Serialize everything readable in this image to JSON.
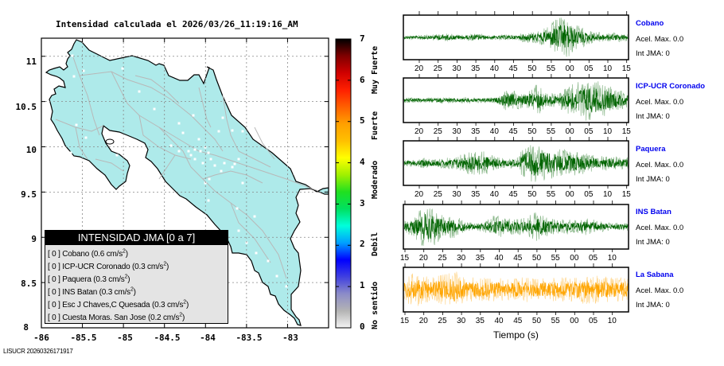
{
  "title": "Intensidad calculada el 2026/03/26_11:19:16_AM",
  "footer": "LISUCR 20260326171917",
  "map": {
    "lat_ticks": [
      "11",
      "10.5",
      "10",
      "9.5",
      "9",
      "8.5",
      "8"
    ],
    "lon_ticks": [
      "-86",
      "-85.5",
      "-85",
      "-84.5",
      "-84",
      "-83.5",
      "-83"
    ],
    "lat_range": [
      8,
      11.2
    ],
    "lon_range": [
      -86,
      -82.5
    ],
    "land_color": "#aeeaea",
    "road_color": "#b8b8b8"
  },
  "legend": {
    "header": "INTENSIDAD JMA [0 a 7]",
    "items": [
      {
        "intensity": "[ 0 ]",
        "station": "Cobano (0.6 cm/s",
        "sup": "2",
        "close": ")"
      },
      {
        "intensity": "[ 0 ]",
        "station": "ICP-UCR Coronado (0.3 cm/s",
        "sup": "2",
        "close": ")"
      },
      {
        "intensity": "[ 0 ]",
        "station": "Paquera (0.3 cm/s",
        "sup": "2",
        "close": ")"
      },
      {
        "intensity": "[ 0 ]",
        "station": "INS Batan (0.3 cm/s",
        "sup": "2",
        "close": ")"
      },
      {
        "intensity": "[ 0 ]",
        "station": "Esc J Chaves,C Quesada (0.3 cm/s",
        "sup": "2",
        "close": ")"
      },
      {
        "intensity": "[ 0 ]",
        "station": "Cuesta Moras. San Jose (0.2 cm/s",
        "sup": "2",
        "close": ")"
      }
    ]
  },
  "colorbar": {
    "ticks": [
      "0",
      "1",
      "2",
      "3",
      "4",
      "5",
      "6",
      "7"
    ],
    "categories": [
      "No sentido",
      "Debil",
      "Moderado",
      "Fuerte",
      "Muy Fuerte"
    ],
    "stops": [
      "#f4f4f4",
      "#b4b4b4",
      "#8c8cc8",
      "#4040e0",
      "#0000ff",
      "#00a0ff",
      "#00ffdc",
      "#00e060",
      "#20e020",
      "#a0f000",
      "#ffff00",
      "#ffc000",
      "#ffa000",
      "#ff6000",
      "#ff2000",
      "#d00000",
      "#800000",
      "#000000"
    ]
  },
  "chart_data": {
    "type": "line",
    "title": "Intensidad calculada el 2026/03/26_11:19:16_AM",
    "xlabel": "Tiempo (s)",
    "series": [
      {
        "name": "Cobano",
        "acel": "Acel. Max. 0.0",
        "int": "Int JMA: 0",
        "color": "#006400",
        "ticks": [
          "20",
          "25",
          "30",
          "35",
          "40",
          "45",
          "50",
          "55",
          "00",
          "05",
          "10",
          "15"
        ],
        "tick_offset": 1,
        "envelope": [
          0.1,
          0.1,
          0.12,
          0.15,
          0.2,
          0.15,
          0.12,
          0.18,
          0.12,
          0.1,
          0.15,
          0.12,
          0.25,
          0.3,
          0.45,
          0.9,
          1.0,
          0.6,
          0.35,
          0.25,
          0.2,
          0.22,
          0.18
        ]
      },
      {
        "name": "ICP-UCR Coronado",
        "acel": "Acel. Max. 0.0",
        "int": "Int JMA: 0",
        "color": "#006400",
        "ticks": [
          "20",
          "25",
          "30",
          "35",
          "40",
          "45",
          "50",
          "55",
          "00",
          "05",
          "10",
          "15"
        ],
        "tick_offset": 1,
        "envelope": [
          0.12,
          0.12,
          0.1,
          0.12,
          0.15,
          0.12,
          0.14,
          0.12,
          0.12,
          0.15,
          0.5,
          0.45,
          0.35,
          0.75,
          0.4,
          0.3,
          0.6,
          0.85,
          1.0,
          0.9,
          0.7,
          0.5,
          0.4
        ]
      },
      {
        "name": "Paquera",
        "acel": "Acel. Max. 0.0",
        "int": "Int JMA: 0",
        "color": "#006400",
        "ticks": [
          "20",
          "25",
          "30",
          "35",
          "40",
          "45",
          "50",
          "55",
          "00",
          "05",
          "10",
          "15"
        ],
        "tick_offset": 1,
        "envelope": [
          0.15,
          0.15,
          0.25,
          0.2,
          0.25,
          0.3,
          0.5,
          0.6,
          0.55,
          0.3,
          0.2,
          0.3,
          0.8,
          1.0,
          0.8,
          0.7,
          0.6,
          0.6,
          0.5,
          0.35,
          0.35,
          0.3,
          0.3
        ]
      },
      {
        "name": "INS Batan",
        "acel": "Acel. Max. 0.0",
        "int": "Int JMA: 0",
        "color": "#006400",
        "ticks": [
          "15",
          "20",
          "25",
          "30",
          "35",
          "40",
          "45",
          "50",
          "55",
          "00",
          "05",
          "10"
        ],
        "tick_offset": 0,
        "envelope": [
          0.3,
          0.5,
          1.0,
          0.9,
          0.5,
          0.55,
          0.25,
          0.15,
          0.3,
          0.6,
          0.4,
          0.35,
          0.45,
          0.7,
          0.45,
          0.35,
          0.35,
          0.3,
          0.4,
          0.3,
          0.2,
          0.18,
          0.2
        ]
      },
      {
        "name": "La Sabana",
        "acel": "Acel. Max. 0.0",
        "int": "Int JMA: 0",
        "color": "#ffa500",
        "ticks": [
          "15",
          "20",
          "25",
          "30",
          "35",
          "40",
          "45",
          "50",
          "55",
          "00",
          "05",
          "10"
        ],
        "tick_offset": 0,
        "envelope": [
          0.6,
          0.8,
          0.7,
          0.6,
          0.8,
          0.9,
          0.55,
          0.6,
          0.55,
          0.6,
          0.5,
          0.55,
          0.6,
          0.5,
          0.55,
          0.6,
          0.55,
          0.6,
          0.7,
          0.65,
          0.6,
          0.55,
          0.6
        ]
      }
    ]
  }
}
